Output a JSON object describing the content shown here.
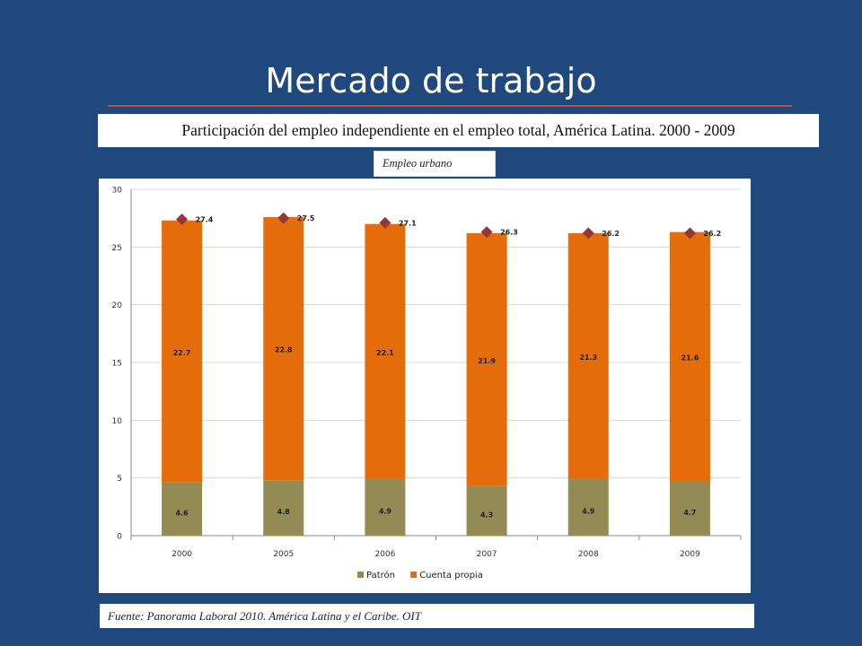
{
  "slide": {
    "title": "Mercado de trabajo",
    "subtitle": "Participación del empleo independiente en el empleo total, América Latina. 2000 - 2009",
    "tag": "Empleo urbano",
    "source": "Fuente: Panorama Laboral 2010. América Latina y el Caribe. OIT"
  },
  "colors": {
    "background": "#1F497D",
    "rule": "#C0504D",
    "patron": "#948A54",
    "cuenta_propia": "#E46C0A",
    "total_marker": "#953735"
  },
  "chart_data": {
    "type": "bar",
    "stacked": true,
    "categories": [
      "2000",
      "2005",
      "2006",
      "2007",
      "2008",
      "2009"
    ],
    "series": [
      {
        "name": "Patrón",
        "values": [
          4.6,
          4.8,
          4.9,
          4.3,
          4.9,
          4.7
        ],
        "labels": [
          "4.6",
          "4.8",
          "4.9",
          "4.3",
          "4.9",
          "4.7"
        ]
      },
      {
        "name": "Cuenta propia",
        "values": [
          22.7,
          22.8,
          22.1,
          21.9,
          21.3,
          21.6
        ],
        "labels": [
          "22.7",
          "22.8",
          "22.1",
          "21.9",
          "21.3",
          "21.6"
        ]
      }
    ],
    "totals": {
      "values": [
        27.4,
        27.5,
        27.1,
        26.3,
        26.2,
        26.2
      ],
      "labels": [
        "27.4",
        "27.5",
        "27.1",
        "26.3",
        "26.2",
        "26.2"
      ]
    },
    "y_ticks": [
      "0",
      "5",
      "10",
      "15",
      "20",
      "25",
      "30"
    ],
    "ylim": [
      0,
      30
    ],
    "grid": true,
    "legend": "bottom"
  }
}
